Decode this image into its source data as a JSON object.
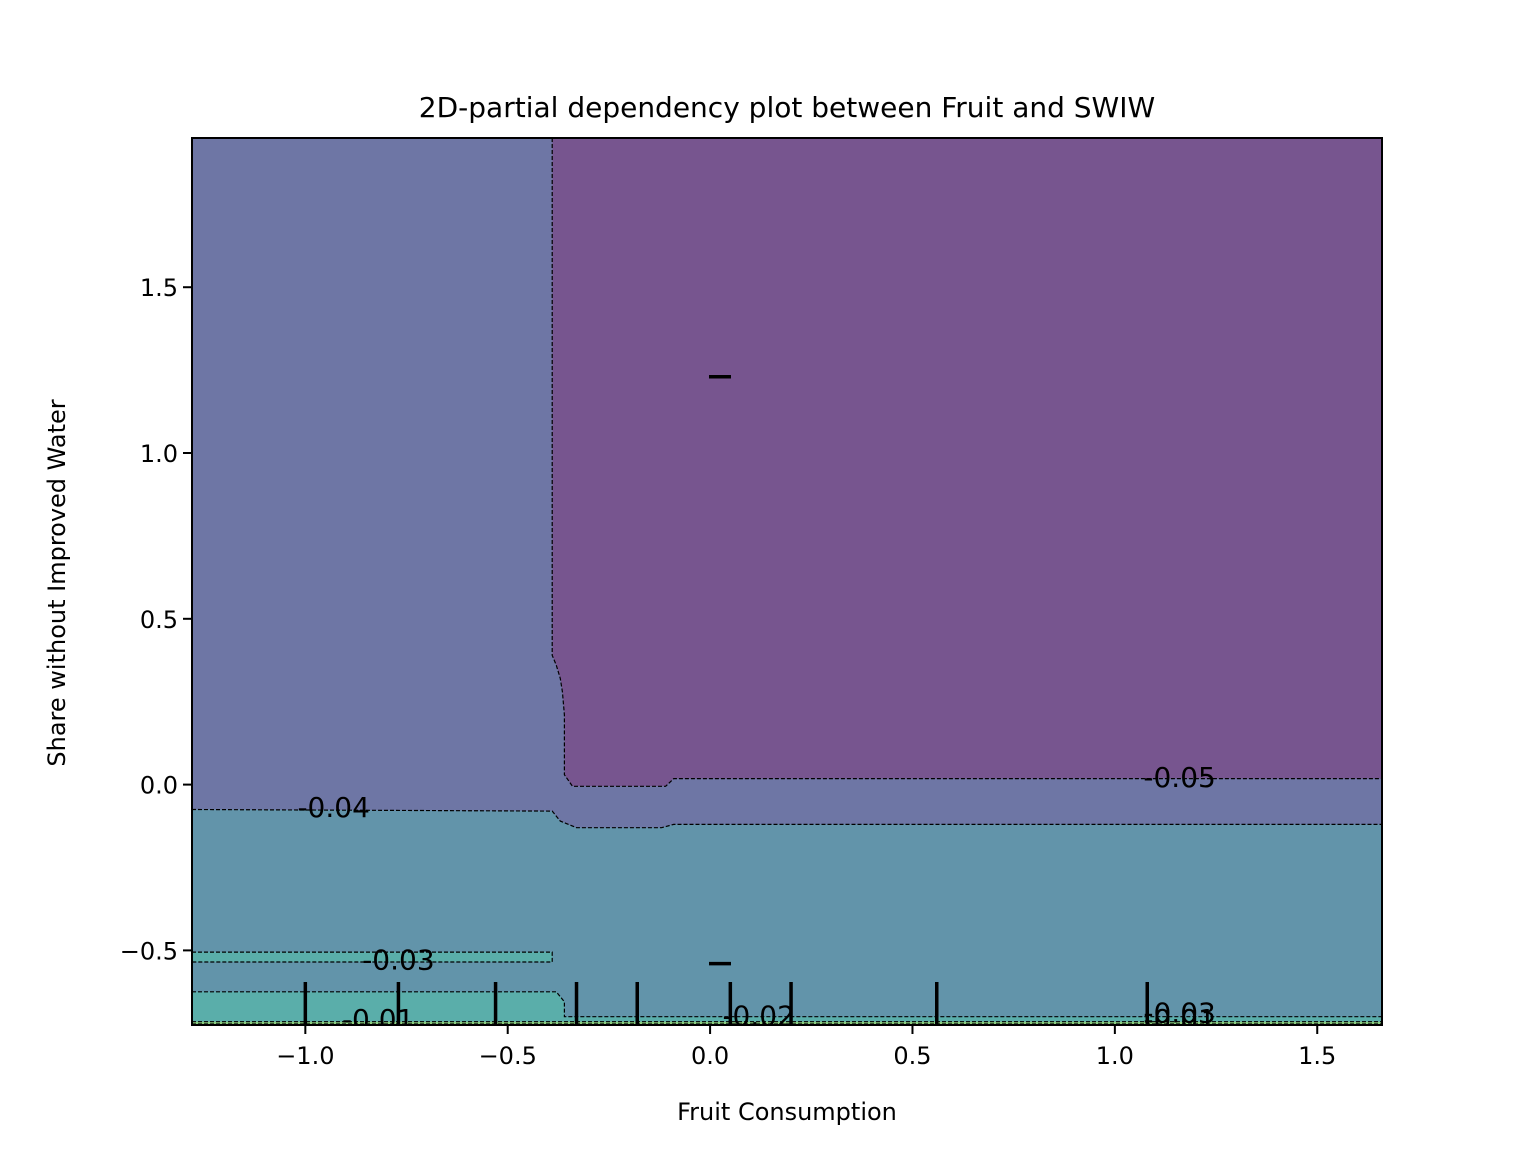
{
  "chart_data": {
    "type": "contour",
    "title": "2D-partial dependency plot between Fruit and SWIW",
    "xlabel": "Fruit Consumption",
    "ylabel": "Share without Improved Water",
    "xlim": [
      -1.28,
      1.66
    ],
    "ylim": [
      -0.725,
      1.95
    ],
    "x_ticks": [
      -1.0,
      -0.5,
      0.0,
      0.5,
      1.0,
      1.5
    ],
    "x_tick_labels": [
      "−1.0",
      "−0.5",
      "0.0",
      "0.5",
      "1.0",
      "1.5"
    ],
    "y_ticks": [
      -0.5,
      0.0,
      0.5,
      1.0,
      1.5
    ],
    "y_tick_labels": [
      "−0.5",
      "0.0",
      "0.5",
      "1.0",
      "1.5"
    ],
    "grid": false,
    "colors": {
      "level_neg_0_05": "#77558f",
      "level_neg_0_04": "#6e76a5",
      "level_neg_0_03": "#6294aa",
      "level_neg_0_02": "#5aaeaa",
      "level_neg_0_01": "#8bcf80",
      "level_0_00": "#bfe06a"
    },
    "regions": [
      {
        "level": "-0.05",
        "color_key": "level_neg_0_05",
        "boundary": [
          [
            -0.39,
            1.95
          ],
          [
            1.66,
            1.95
          ],
          [
            1.66,
            0.018
          ],
          [
            -0.09,
            0.018
          ],
          [
            -0.11,
            -0.005
          ],
          [
            -0.34,
            -0.005
          ],
          [
            -0.36,
            0.03
          ],
          [
            -0.36,
            0.21
          ],
          [
            -0.365,
            0.28
          ],
          [
            -0.37,
            0.32
          ],
          [
            -0.38,
            0.36
          ],
          [
            -0.39,
            0.39
          ]
        ]
      },
      {
        "level": "-0.04",
        "color_key": "level_neg_0_04",
        "boundary": [
          [
            -1.28,
            1.95
          ],
          [
            -0.39,
            1.95
          ],
          [
            -0.39,
            0.39
          ],
          [
            -0.38,
            0.36
          ],
          [
            -0.37,
            0.32
          ],
          [
            -0.365,
            0.28
          ],
          [
            -0.36,
            0.21
          ],
          [
            -0.36,
            0.03
          ],
          [
            -0.34,
            -0.005
          ],
          [
            -0.11,
            -0.005
          ],
          [
            -0.09,
            0.018
          ],
          [
            1.66,
            0.018
          ],
          [
            1.66,
            -0.12
          ],
          [
            -0.09,
            -0.12
          ],
          [
            -0.12,
            -0.13
          ],
          [
            -0.33,
            -0.13
          ],
          [
            -0.37,
            -0.11
          ],
          [
            -0.39,
            -0.08
          ],
          [
            -1.28,
            -0.075
          ]
        ]
      },
      {
        "level": "-0.03",
        "color_key": "level_neg_0_03",
        "boundary": [
          [
            -1.28,
            -0.075
          ],
          [
            -0.39,
            -0.08
          ],
          [
            -0.37,
            -0.11
          ],
          [
            -0.33,
            -0.13
          ],
          [
            -0.12,
            -0.13
          ],
          [
            -0.09,
            -0.12
          ],
          [
            1.66,
            -0.12
          ],
          [
            1.66,
            -0.7
          ],
          [
            -0.36,
            -0.7
          ],
          [
            -0.36,
            -0.655
          ],
          [
            -0.38,
            -0.625
          ],
          [
            -1.28,
            -0.625
          ],
          [
            -1.28,
            -0.535
          ],
          [
            -0.39,
            -0.535
          ],
          [
            -0.39,
            -0.505
          ],
          [
            -1.28,
            -0.505
          ]
        ]
      },
      {
        "level": "-0.02",
        "color_key": "level_neg_0_02",
        "boundary": [
          [
            -1.28,
            -0.505
          ],
          [
            -0.39,
            -0.505
          ],
          [
            -0.39,
            -0.535
          ],
          [
            -1.28,
            -0.535
          ]
        ]
      },
      {
        "level": "-0.02",
        "color_key": "level_neg_0_02",
        "boundary": [
          [
            -1.28,
            -0.625
          ],
          [
            -0.38,
            -0.625
          ],
          [
            -0.36,
            -0.655
          ],
          [
            -0.36,
            -0.7
          ],
          [
            1.66,
            -0.7
          ],
          [
            1.66,
            -0.715
          ],
          [
            -1.28,
            -0.715
          ]
        ]
      },
      {
        "level": "-0.01",
        "color_key": "level_neg_0_01",
        "boundary": [
          [
            -1.28,
            -0.715
          ],
          [
            1.66,
            -0.715
          ],
          [
            1.66,
            -0.722
          ],
          [
            -1.28,
            -0.722
          ]
        ]
      },
      {
        "level": "0.00",
        "color_key": "level_0_00",
        "boundary": [
          [
            -1.28,
            -0.722
          ],
          [
            1.66,
            -0.722
          ],
          [
            1.66,
            -0.725
          ],
          [
            -1.28,
            -0.725
          ]
        ]
      }
    ],
    "contour_lines": [
      [
        [
          -0.39,
          1.95
        ],
        [
          -0.39,
          0.39
        ],
        [
          -0.38,
          0.36
        ],
        [
          -0.37,
          0.32
        ],
        [
          -0.365,
          0.28
        ],
        [
          -0.36,
          0.21
        ],
        [
          -0.36,
          0.03
        ],
        [
          -0.34,
          -0.005
        ],
        [
          -0.11,
          -0.005
        ],
        [
          -0.09,
          0.018
        ],
        [
          1.66,
          0.018
        ]
      ],
      [
        [
          -1.28,
          -0.075
        ],
        [
          -0.39,
          -0.08
        ],
        [
          -0.37,
          -0.11
        ],
        [
          -0.33,
          -0.13
        ],
        [
          -0.12,
          -0.13
        ],
        [
          -0.09,
          -0.12
        ],
        [
          1.66,
          -0.12
        ]
      ],
      [
        [
          -1.28,
          -0.505
        ],
        [
          -0.39,
          -0.505
        ],
        [
          -0.39,
          -0.535
        ],
        [
          -1.28,
          -0.535
        ]
      ],
      [
        [
          -1.28,
          -0.625
        ],
        [
          -0.38,
          -0.625
        ],
        [
          -0.36,
          -0.655
        ],
        [
          -0.36,
          -0.7
        ],
        [
          1.66,
          -0.7
        ]
      ],
      [
        [
          -1.28,
          -0.715
        ],
        [
          1.66,
          -0.715
        ]
      ],
      [
        [
          -1.28,
          -0.722
        ],
        [
          1.66,
          -0.722
        ]
      ]
    ],
    "contour_labels": [
      {
        "text": "-0.05",
        "x": 1.16,
        "y": 0.02
      },
      {
        "text": "-0.04",
        "x": -0.93,
        "y": -0.07
      },
      {
        "text": "-0.03",
        "x": -0.77,
        "y": -0.53
      },
      {
        "text": "-0.02",
        "x": 0.12,
        "y": -0.7
      },
      {
        "text": "-0.03",
        "x": 1.16,
        "y": -0.69
      },
      {
        "text": "-0.01",
        "x": -0.82,
        "y": -0.71
      },
      {
        "text": "-0.01",
        "x": 1.16,
        "y": -0.71
      }
    ],
    "x_rug": [
      -1.0,
      -0.77,
      -0.53,
      -0.33,
      -0.18,
      0.05,
      0.2,
      0.56,
      1.08
    ],
    "y_rug": [
      1.23,
      -0.54
    ]
  }
}
